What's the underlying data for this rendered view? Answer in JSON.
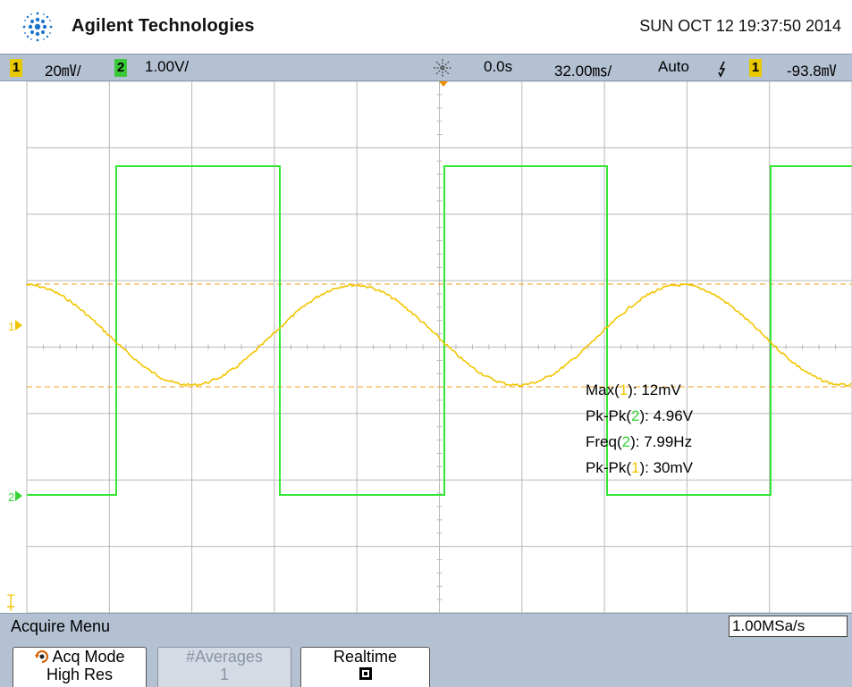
{
  "header": {
    "brand": "Agilent Technologies",
    "datetime": "SUN OCT 12 19:37:50 2014"
  },
  "status": {
    "ch1_number": "1",
    "ch1_scale": "20㎷/",
    "ch2_number": "2",
    "ch2_scale": "1.00V/",
    "time_delay": "0.0s",
    "time_scale": "32.00㎳/",
    "trigger_mode": "Auto",
    "trigger_slope_icon": "falling-edge-icon",
    "trigger_source": "1",
    "trigger_level": "-93.8㎷"
  },
  "markers": {
    "ch1": "1",
    "ch2": "2",
    "trigger": "T"
  },
  "measurements": [
    {
      "prefix": "Max(",
      "channel": "1",
      "suffix": "): 12mV",
      "color": "#f2c500"
    },
    {
      "prefix": "Pk-Pk(",
      "channel": "2",
      "suffix": "): 4.96V",
      "color": "#35d435"
    },
    {
      "prefix": "Freq(",
      "channel": "2",
      "suffix": "): 7.99Hz",
      "color": "#35d435"
    },
    {
      "prefix": "Pk-Pk(",
      "channel": "1",
      "suffix": "): 30mV",
      "color": "#f2c500"
    }
  ],
  "menu": {
    "title": "Acquire Menu",
    "sample_rate": "1.00MSa/s"
  },
  "softkeys": {
    "acq_mode_label": "Acq Mode",
    "acq_mode_value": "High Res",
    "averages_label": "#Averages",
    "averages_value": "1",
    "realtime_label": "Realtime"
  },
  "colors": {
    "ch1": "#f2c500",
    "ch2": "#35e635",
    "grid": "#b8b8b8",
    "panel": "#b4c1d3"
  }
}
